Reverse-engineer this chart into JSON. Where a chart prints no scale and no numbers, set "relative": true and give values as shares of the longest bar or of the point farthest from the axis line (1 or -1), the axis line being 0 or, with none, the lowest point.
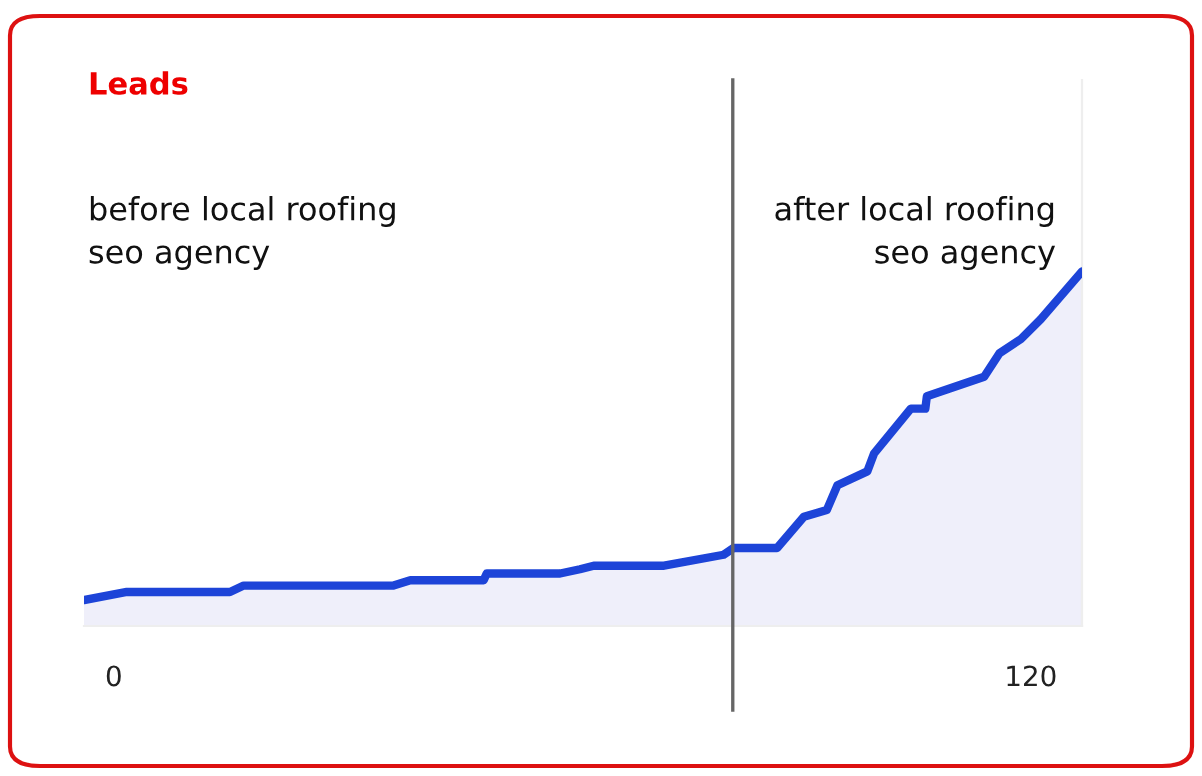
{
  "chart_data": {
    "type": "area",
    "title": "Leads",
    "relative": true,
    "x": [
      -3.9,
      1.7,
      15.2,
      17.0,
      36.6,
      38.8,
      48.4,
      48.8,
      58.4,
      61.0,
      62.8,
      72.0,
      79.8,
      81.1,
      86.8,
      90.3,
      93.3,
      94.7,
      98.6,
      99.5,
      104.3,
      106.2,
      106.4,
      113.9,
      115.9,
      118.7,
      121.3,
      126.7
    ],
    "series": [
      {
        "color": "#1d44d8",
        "values": [
          0.073,
          0.096,
          0.096,
          0.114,
          0.114,
          0.129,
          0.129,
          0.148,
          0.148,
          0.16,
          0.17,
          0.17,
          0.201,
          0.22,
          0.22,
          0.308,
          0.327,
          0.397,
          0.436,
          0.487,
          0.613,
          0.613,
          0.648,
          0.703,
          0.769,
          0.809,
          0.865,
          1.0
        ]
      }
    ],
    "xlim": [
      -3.9,
      126.7
    ],
    "xticks": [
      0,
      120
    ],
    "ref_lines": [
      {
        "axis": "x",
        "value": 81,
        "color": "#666666"
      }
    ],
    "annotations": [
      "before local roofing\nseo agency",
      "after local roofing\nseo agency"
    ],
    "grid": false,
    "legend": false
  }
}
